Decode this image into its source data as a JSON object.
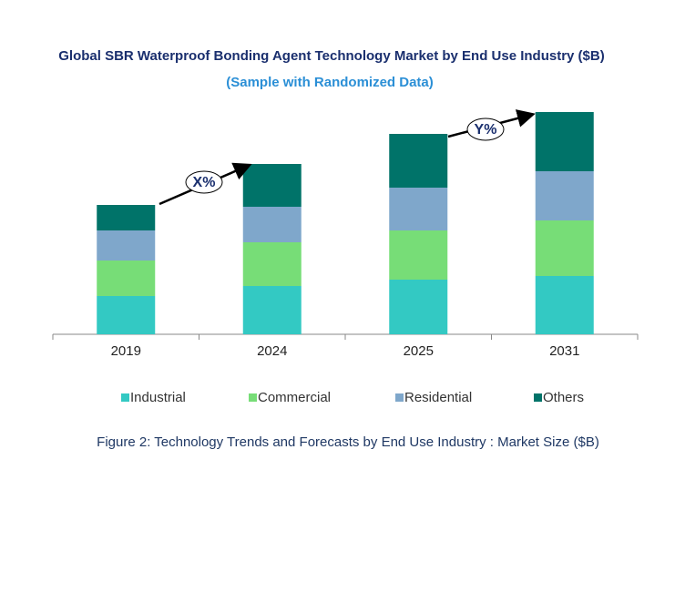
{
  "chart_data": {
    "type": "stacked_bar",
    "title": "Global  SBR Waterproof Bonding Agent Technology Market by End Use Industry ($B)",
    "subtitle": "(Sample with Randomized Data)",
    "caption": "Figure 2: Technology  Trends  and Forecasts by End Use Industry  : Market Size ($B)",
    "categories": [
      "2019",
      "2024",
      "2025",
      "2031"
    ],
    "series": [
      {
        "name": "Industrial",
        "color": "#33c9c3",
        "values": [
          42,
          53,
          60,
          64
        ]
      },
      {
        "name": "Commercial",
        "color": "#77dd77",
        "values": [
          39,
          48,
          54,
          61
        ]
      },
      {
        "name": "Residential",
        "color": "#7fa7cb",
        "values": [
          33,
          39,
          47,
          54
        ]
      },
      {
        "name": "Others",
        "color": "#007369",
        "values": [
          28,
          47,
          59,
          65
        ]
      }
    ],
    "ylim": [
      0,
      250
    ],
    "annotations": [
      "X%",
      "Y%"
    ]
  }
}
